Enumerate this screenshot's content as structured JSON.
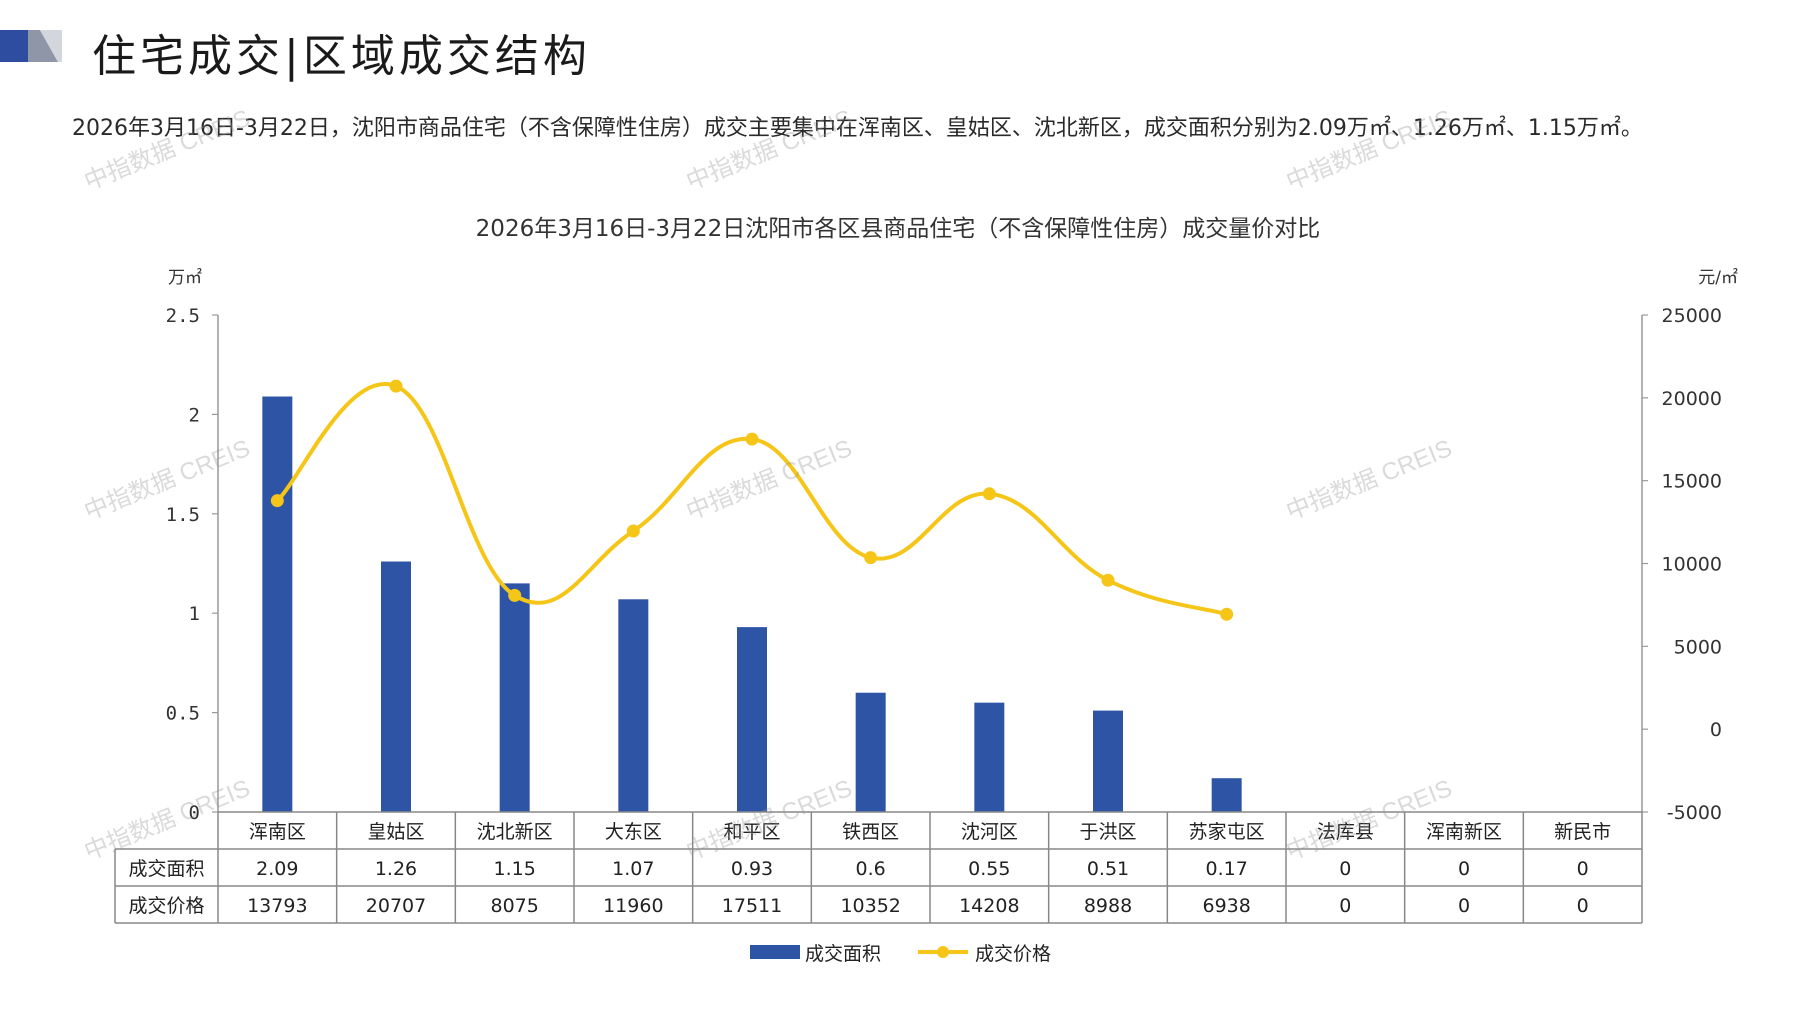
{
  "header": {
    "title": "住宅成交|区域成交结构"
  },
  "intro": {
    "text": "2026年3月16日-3月22日，沈阳市商品住宅（不含保障性住房）成交主要集中在浑南区、皇姑区、沈北新区，成交面积分别为2.09万㎡、1.26万㎡、1.15万㎡。"
  },
  "watermark": "中指数据 CREIS",
  "colors": {
    "bar": "#2E55A5",
    "line": "#F5C518",
    "logo_dark": "#2F4DA0",
    "logo_light": "#BFC3CC",
    "grid": "#888888"
  },
  "chart_data": {
    "type": "bar",
    "title": "2026年3月16日-3月22日沈阳市各区县商品住宅（不含保障性住房）成交量价对比",
    "categories": [
      "浑南区",
      "皇姑区",
      "沈北新区",
      "大东区",
      "和平区",
      "铁西区",
      "沈河区",
      "于洪区",
      "苏家屯区",
      "法库县",
      "浑南新区",
      "新民市"
    ],
    "y_left_unit": "万㎡",
    "y_right_unit": "元/㎡",
    "y_left_ticks": [
      "2.5",
      "2",
      "1.5",
      "1",
      "0.5",
      "0"
    ],
    "y_right_ticks": [
      "25000",
      "20000",
      "15000",
      "10000",
      "5000",
      "0",
      "-5000"
    ],
    "ylim_left": [
      0,
      2.5
    ],
    "ylim_right": [
      -5000,
      25000
    ],
    "series": [
      {
        "name": "成交面积",
        "kind": "bar",
        "axis": "left",
        "values": [
          2.09,
          1.26,
          1.15,
          1.07,
          0.93,
          0.6,
          0.55,
          0.51,
          0.17,
          0,
          0,
          0
        ],
        "table_labels": [
          "2.09",
          "1.26",
          "1.15",
          "1.07",
          "0.93",
          "0.6",
          "0.55",
          "0.51",
          "0.17",
          "0",
          "0",
          "0"
        ]
      },
      {
        "name": "成交价格",
        "kind": "line",
        "axis": "right",
        "values": [
          13793,
          20707,
          8075,
          11960,
          17511,
          10352,
          14208,
          8988,
          6938,
          0,
          0,
          0
        ],
        "table_labels": [
          "13793",
          "20707",
          "8075",
          "11960",
          "17511",
          "10352",
          "14208",
          "8988",
          "6938",
          "0",
          "0",
          "0"
        ],
        "plotted_points": 9
      }
    ],
    "legend_position": "bottom"
  }
}
